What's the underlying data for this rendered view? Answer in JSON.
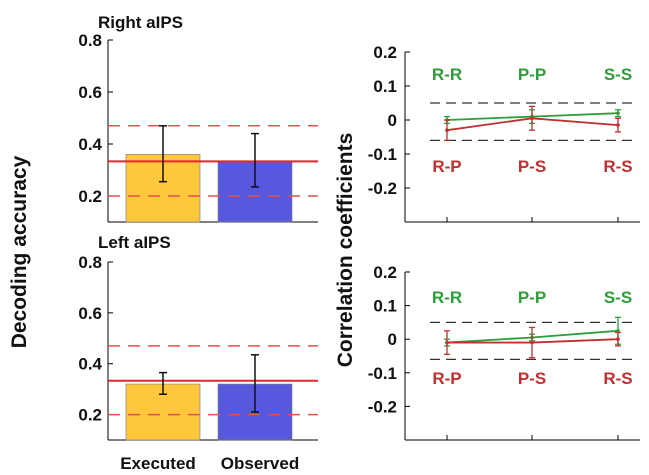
{
  "figure": {
    "left_ylabel": "Decoding accuracy",
    "right_ylabel": "Correlation coefficients"
  },
  "colors": {
    "executed": "#FFC73B",
    "observed": "#5858DF",
    "chance": "#E0282F",
    "green": "#2E9E3A",
    "red": "#C03030",
    "dash": "#333333",
    "chance_band": "#E35050"
  },
  "chart_data": [
    {
      "id": "right_bar",
      "type": "bar",
      "title": "Right aIPS",
      "categories": [
        "Executed",
        "Observed"
      ],
      "values": [
        0.36,
        0.335
      ],
      "errors": [
        [
          0.255,
          0.47
        ],
        [
          0.235,
          0.44
        ]
      ],
      "ylim": [
        0.1,
        0.8
      ],
      "yticks": [
        "0.2",
        "0.4",
        "0.6",
        "0.8"
      ],
      "chance_line": 0.333,
      "chance_band": [
        0.2,
        0.47
      ]
    },
    {
      "id": "left_bar",
      "type": "bar",
      "title": "Left aIPS",
      "categories": [
        "Executed",
        "Observed"
      ],
      "values": [
        0.32,
        0.32
      ],
      "errors": [
        [
          0.28,
          0.365
        ],
        [
          0.21,
          0.435
        ]
      ],
      "ylim": [
        0.1,
        0.8
      ],
      "yticks": [
        "0.2",
        "0.4",
        "0.6",
        "0.8"
      ],
      "chance_line": 0.333,
      "chance_band": [
        0.2,
        0.47
      ]
    },
    {
      "id": "right_corr",
      "type": "line",
      "ylim": [
        -0.3,
        0.2
      ],
      "yticks": [
        "0.2",
        "0.1",
        "0",
        "-0.1",
        "-0.2"
      ],
      "top_labels": [
        "R-R",
        "P-P",
        "S-S"
      ],
      "bottom_labels": [
        "R-P",
        "P-S",
        "R-S"
      ],
      "dashed_band": [
        -0.06,
        0.05
      ],
      "series": [
        {
          "label_set": "top",
          "values": [
            0.0,
            0.01,
            0.02
          ],
          "err": [
            0.01,
            0.02,
            0.01
          ]
        },
        {
          "label_set": "bottom",
          "values": [
            -0.03,
            0.005,
            -0.015
          ],
          "err": [
            0.03,
            0.035,
            0.02
          ]
        }
      ]
    },
    {
      "id": "left_corr",
      "type": "line",
      "ylim": [
        -0.3,
        0.2
      ],
      "yticks": [
        "0.2",
        "0.1",
        "0",
        "-0.1",
        "-0.2"
      ],
      "top_labels": [
        "R-R",
        "P-P",
        "S-S"
      ],
      "bottom_labels": [
        "R-P",
        "P-S",
        "R-S"
      ],
      "dashed_band": [
        -0.06,
        0.05
      ],
      "series": [
        {
          "label_set": "top",
          "values": [
            -0.01,
            0.005,
            0.025
          ],
          "err": [
            0.01,
            0.01,
            0.04
          ]
        },
        {
          "label_set": "bottom",
          "values": [
            -0.01,
            -0.01,
            0.0
          ],
          "err": [
            0.035,
            0.045,
            0.02
          ]
        }
      ]
    }
  ]
}
